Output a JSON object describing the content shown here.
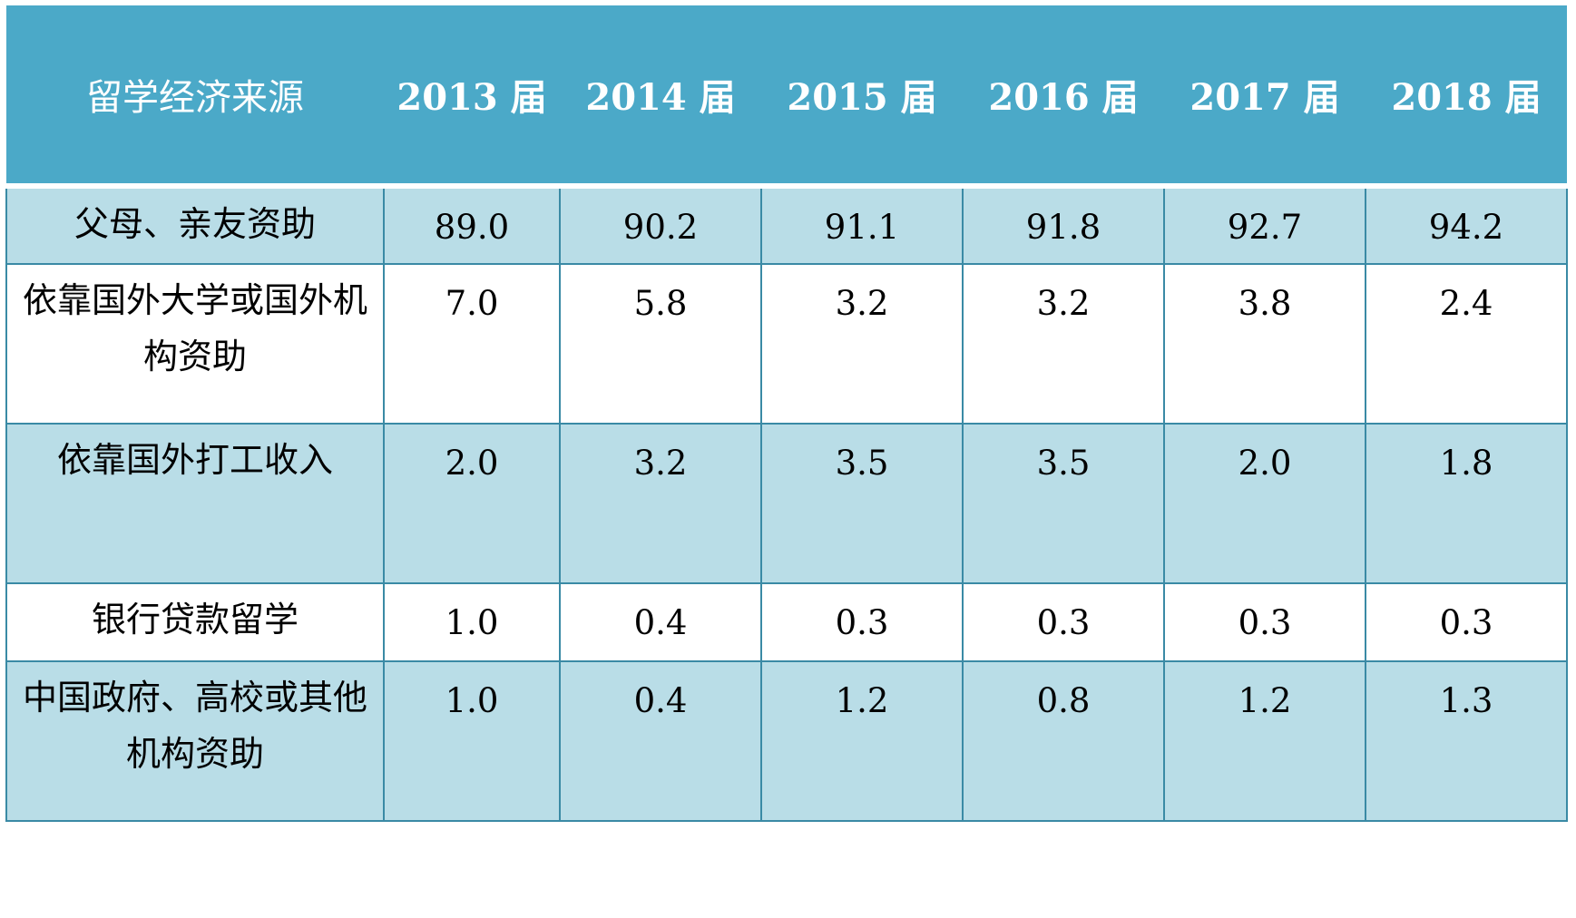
{
  "chart_data": {
    "type": "table",
    "columns": [
      "留学经济来源",
      "2013 届",
      "2014 届",
      "2015 届",
      "2016 届",
      "2017 届",
      "2018 届"
    ],
    "rows": [
      {
        "label": "父母、亲友资助",
        "values": [
          "89.0",
          "90.2",
          "91.1",
          "91.8",
          "92.7",
          "94.2"
        ]
      },
      {
        "label": "依靠国外大学或国外机构资助",
        "values": [
          "7.0",
          "5.8",
          "3.2",
          "3.2",
          "3.8",
          "2.4"
        ]
      },
      {
        "label": "依靠国外打工收入",
        "values": [
          "2.0",
          "3.2",
          "3.5",
          "3.5",
          "2.0",
          "1.8"
        ]
      },
      {
        "label": "银行贷款留学",
        "values": [
          "1.0",
          "0.4",
          "0.3",
          "0.3",
          "0.3",
          "0.3"
        ]
      },
      {
        "label": "中国政府、高校或其他机构资助",
        "values": [
          "1.0",
          "0.4",
          "1.2",
          "0.8",
          "1.2",
          "1.3"
        ]
      }
    ],
    "colors": {
      "header_bg": "#4ba9c8",
      "header_text": "#ffffff",
      "shaded_row_bg": "#b9dde7",
      "plain_row_bg": "#ffffff",
      "border": "#3a8aa5"
    }
  }
}
